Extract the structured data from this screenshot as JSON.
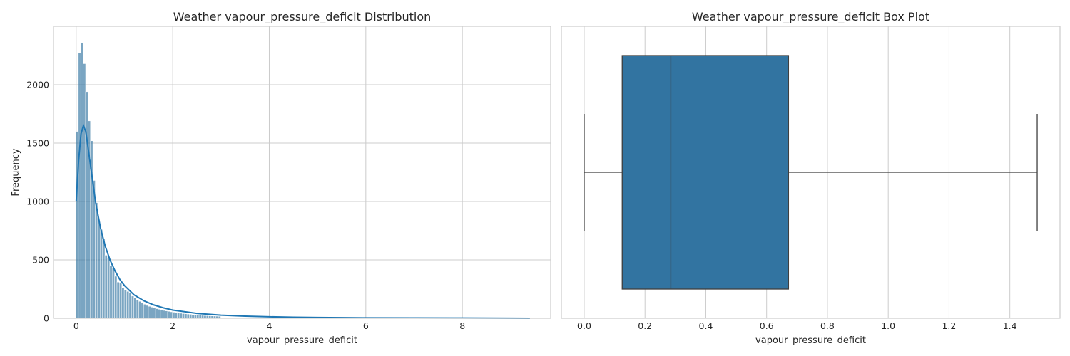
{
  "chart_data": [
    {
      "type": "bar",
      "title": "Weather vapour_pressure_deficit Distribution",
      "xlabel": "vapour_pressure_deficit",
      "ylabel": "Frequency",
      "xlim": [
        -0.47,
        9.83
      ],
      "ylim": [
        0,
        2500
      ],
      "xticks": [
        0,
        2,
        4,
        6,
        8
      ],
      "yticks": [
        0,
        500,
        1000,
        1500,
        2000
      ],
      "grid": true,
      "bar_color": "#3274A1",
      "histogram": {
        "x": [
          0.02,
          0.07,
          0.12,
          0.17,
          0.22,
          0.27,
          0.32,
          0.37,
          0.42,
          0.47,
          0.52,
          0.57,
          0.62,
          0.67,
          0.72,
          0.77,
          0.82,
          0.87,
          0.92,
          0.97,
          1.02,
          1.07,
          1.12,
          1.17,
          1.22,
          1.27,
          1.32,
          1.37,
          1.42,
          1.47,
          1.52,
          1.57,
          1.62,
          1.67,
          1.72,
          1.77,
          1.82,
          1.87,
          1.92,
          1.97,
          2.02,
          2.07,
          2.12,
          2.17,
          2.22,
          2.27,
          2.32,
          2.37,
          2.42,
          2.47,
          2.52,
          2.57,
          2.62,
          2.67,
          2.72,
          2.77,
          2.82,
          2.87,
          2.92,
          2.97
        ],
        "values": [
          1600,
          2270,
          2360,
          2180,
          1940,
          1690,
          1520,
          1180,
          990,
          840,
          760,
          680,
          540,
          520,
          450,
          430,
          360,
          310,
          300,
          260,
          240,
          230,
          220,
          190,
          175,
          160,
          145,
          130,
          120,
          110,
          102,
          95,
          88,
          82,
          77,
          72,
          67,
          63,
          59,
          55,
          52,
          49,
          46,
          43,
          40,
          38,
          36,
          34,
          32,
          30,
          28,
          26,
          25,
          23,
          22,
          21,
          20,
          19,
          18,
          17
        ]
      },
      "kde": {
        "name": "",
        "x": [
          0,
          0.05,
          0.1,
          0.15,
          0.2,
          0.25,
          0.3,
          0.35,
          0.4,
          0.5,
          0.6,
          0.7,
          0.8,
          0.9,
          1.0,
          1.2,
          1.4,
          1.6,
          1.8,
          2.0,
          2.5,
          3.0,
          3.5,
          4.0,
          4.5,
          5.0,
          5.5,
          6.0,
          7.0,
          8.0,
          9.0,
          9.4
        ],
        "values": [
          1000,
          1350,
          1580,
          1650,
          1600,
          1450,
          1300,
          1150,
          1000,
          780,
          620,
          500,
          410,
          335,
          280,
          200,
          150,
          115,
          90,
          70,
          42,
          27,
          18,
          13,
          9,
          7,
          5,
          4,
          3,
          2,
          1,
          0
        ]
      }
    },
    {
      "type": "box",
      "title": "Weather vapour_pressure_deficit Box Plot",
      "xlabel": "vapour_pressure_deficit",
      "xlim": [
        -0.075,
        1.565
      ],
      "xticks": [
        0.0,
        0.2,
        0.4,
        0.6,
        0.8,
        1.0,
        1.2,
        1.4
      ],
      "grid": true,
      "box_color": "#3274A1",
      "box": {
        "whisker_low": 0.0,
        "q1": 0.125,
        "median": 0.285,
        "q3": 0.672,
        "whisker_high": 1.49
      }
    }
  ]
}
